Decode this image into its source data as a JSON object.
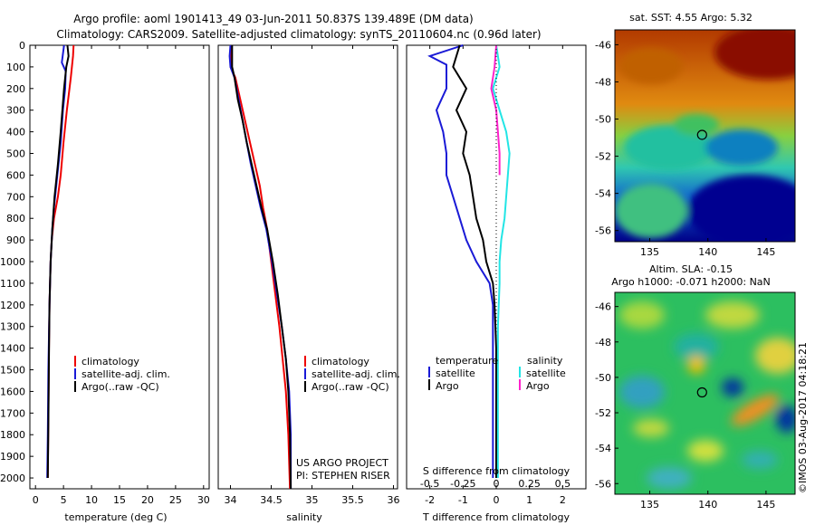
{
  "header": {
    "line1": "Argo profile: aoml 1901413_49 03-Jun-2011 50.837S 139.489E (DM data)",
    "line2": "Climatology: CARS2009. Satellite-adjusted climatology: synTS_20110604.nc (0.96d later)"
  },
  "colors": {
    "climatology": "#ee0000",
    "satellite": "#1a1ad6",
    "argo": "#000000",
    "sat_salinity": "#22e5e5",
    "argo_salinity": "#ff22cc"
  },
  "chart_data": [
    {
      "type": "line",
      "id": "temperature",
      "xlabel": "temperature (deg C)",
      "ylabel": "",
      "xlim": [
        -1,
        31
      ],
      "ylim": [
        2050,
        0
      ],
      "xticks": [
        0,
        5,
        10,
        15,
        20,
        25,
        30
      ],
      "yticks": [
        0,
        100,
        200,
        300,
        400,
        500,
        600,
        700,
        800,
        900,
        1000,
        1100,
        1200,
        1300,
        1400,
        1500,
        1600,
        1700,
        1800,
        1900,
        2000
      ],
      "legend": [
        "climatology",
        "satellite-adj. clim.",
        "Argo(..raw -QC)"
      ],
      "series": [
        {
          "name": "climatology",
          "x": [
            6.8,
            6.7,
            6.3,
            5.6,
            5.0,
            4.5,
            4.0,
            3.3,
            2.9,
            2.7,
            2.5,
            2.4,
            2.3,
            2.2
          ],
          "y": [
            0,
            50,
            150,
            300,
            450,
            600,
            700,
            800,
            900,
            1000,
            1200,
            1400,
            1700,
            2000
          ]
        },
        {
          "name": "satellite-adj. clim.",
          "x": [
            5.1,
            4.7,
            5.4,
            5.3,
            4.9,
            4.5,
            4.1,
            3.7,
            3.3,
            3.0,
            2.7,
            2.5,
            2.3,
            2.2,
            2.1
          ],
          "y": [
            0,
            80,
            120,
            200,
            300,
            450,
            550,
            650,
            750,
            850,
            1000,
            1200,
            1500,
            1800,
            2000
          ]
        },
        {
          "name": "Argo(..raw -QC)",
          "x": [
            5.7,
            5.9,
            5.5,
            5.1,
            4.8,
            4.5,
            4.0,
            3.4,
            3.0,
            2.7,
            2.5,
            2.4,
            2.3,
            2.2
          ],
          "y": [
            0,
            50,
            100,
            200,
            300,
            400,
            550,
            700,
            850,
            1000,
            1200,
            1450,
            1750,
            2000
          ]
        }
      ]
    },
    {
      "type": "line",
      "id": "salinity",
      "xlabel": "salinity",
      "ylabel": "",
      "xlim": [
        33.85,
        36.05
      ],
      "ylim": [
        2050,
        0
      ],
      "xticks": [
        34,
        34.5,
        35,
        35.5,
        36
      ],
      "legend": [
        "climatology",
        "satellite-adj. clim.",
        "Argo(..raw -QC)"
      ],
      "annotation": [
        "US ARGO PROJECT",
        "PI: STEPHEN RISER"
      ],
      "series": [
        {
          "name": "climatology",
          "x": [
            34.0,
            34.0,
            34.0,
            34.06,
            34.12,
            34.18,
            34.24,
            34.3,
            34.36,
            34.4,
            34.45,
            34.5,
            34.55,
            34.6,
            34.64,
            34.68,
            34.71,
            34.73
          ],
          "y": [
            0,
            50,
            100,
            150,
            250,
            350,
            450,
            550,
            650,
            750,
            850,
            1000,
            1150,
            1300,
            1450,
            1600,
            1800,
            2050
          ]
        },
        {
          "name": "satellite-adj. clim.",
          "x": [
            34.0,
            33.99,
            34.0,
            34.05,
            34.1,
            34.15,
            34.2,
            34.25,
            34.31,
            34.37,
            34.44,
            34.51,
            34.57,
            34.63,
            34.68,
            34.72,
            34.74,
            34.74
          ],
          "y": [
            0,
            50,
            100,
            150,
            250,
            350,
            450,
            550,
            650,
            750,
            850,
            1000,
            1150,
            1300,
            1450,
            1600,
            1800,
            2050
          ]
        },
        {
          "name": "Argo(..raw -QC)",
          "x": [
            34.02,
            34.02,
            34.02,
            34.05,
            34.09,
            34.15,
            34.2,
            34.26,
            34.32,
            34.38,
            34.45,
            34.52,
            34.58,
            34.63,
            34.68,
            34.71,
            34.73,
            34.74
          ],
          "y": [
            0,
            50,
            100,
            150,
            250,
            350,
            450,
            550,
            650,
            750,
            850,
            1000,
            1150,
            1300,
            1450,
            1600,
            1800,
            2050
          ]
        }
      ]
    },
    {
      "type": "line",
      "id": "difference",
      "xlabel": "T difference from climatology",
      "xlabel_top": "S difference from climatology",
      "xlim": [
        -2.7,
        2.7
      ],
      "ylim": [
        2050,
        0
      ],
      "xticks": [
        -2,
        -1,
        0,
        1,
        2
      ],
      "sticks": [
        "-0.5",
        "-0.25",
        "0",
        "0.25",
        "0.5"
      ],
      "legend_t_title": "temperature",
      "legend_s_title": "salinity",
      "legend_t": [
        "satellite",
        "Argo"
      ],
      "legend_s": [
        "satellite",
        "Argo"
      ],
      "series": [
        {
          "name": "satellite",
          "x": [
            -1.0,
            -2.0,
            -1.5,
            -1.5,
            -1.8,
            -1.6,
            -1.5,
            -1.5,
            -1.3,
            -1.1,
            -0.9,
            -0.6,
            -0.2,
            -0.1,
            -0.1,
            -0.1,
            -0.1,
            -0.1
          ],
          "y": [
            0,
            50,
            90,
            200,
            300,
            400,
            500,
            600,
            700,
            800,
            900,
            1000,
            1100,
            1200,
            1400,
            1600,
            1800,
            2000
          ]
        },
        {
          "name": "Argo",
          "x": [
            -1.1,
            -1.3,
            -0.9,
            -1.2,
            -0.9,
            -1.0,
            -0.8,
            -0.7,
            -0.6,
            -0.4,
            -0.3,
            -0.1,
            -0.05,
            0.0,
            0.0,
            0.0
          ],
          "y": [
            0,
            100,
            200,
            300,
            400,
            500,
            600,
            700,
            800,
            900,
            1000,
            1100,
            1200,
            1400,
            1700,
            2000
          ]
        },
        {
          "name": "satellite",
          "x": [
            0.0,
            0.1,
            -0.1,
            0.1,
            0.3,
            0.4,
            0.35,
            0.3,
            0.25,
            0.15,
            0.1,
            0.1,
            0.05,
            0.05
          ],
          "y": [
            0,
            100,
            200,
            300,
            400,
            500,
            600,
            700,
            800,
            900,
            1000,
            1100,
            1300,
            2000
          ]
        },
        {
          "name": "Argo",
          "x": [
            0.0,
            -0.05,
            -0.15,
            0.0,
            0.05,
            0.1,
            0.1
          ],
          "y": [
            0,
            100,
            200,
            300,
            400,
            500,
            600
          ]
        }
      ]
    }
  ],
  "maps": [
    {
      "title": "sat. SST: 4.55 Argo: 5.32",
      "yticks": [
        "-46",
        "-48",
        "-50",
        "-52",
        "-54",
        "-56"
      ],
      "xticks": [
        "135",
        "140",
        "145"
      ],
      "marker": {
        "lon": 139.5,
        "lat": -50.85
      }
    },
    {
      "title_line1": "Altim. SLA: -0.15",
      "title_line2": "Argo h1000: -0.071 h2000: NaN",
      "yticks": [
        "-46",
        "-48",
        "-50",
        "-52",
        "-54",
        "-56"
      ],
      "xticks": [
        "135",
        "140",
        "145"
      ],
      "marker": {
        "lon": 139.5,
        "lat": -50.85
      }
    }
  ],
  "credit": "©IMOS 03-Aug-2017 04:18:21"
}
